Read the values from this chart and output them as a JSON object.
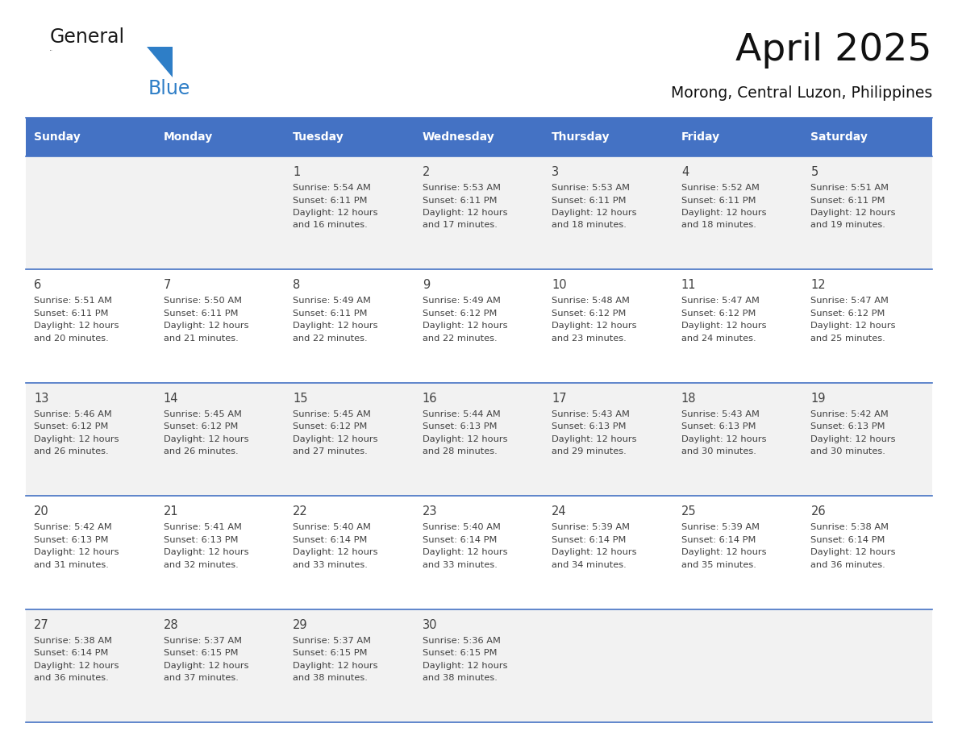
{
  "title": "April 2025",
  "subtitle": "Morong, Central Luzon, Philippines",
  "header_bg": "#4472C4",
  "header_text_color": "#FFFFFF",
  "day_names": [
    "Sunday",
    "Monday",
    "Tuesday",
    "Wednesday",
    "Thursday",
    "Friday",
    "Saturday"
  ],
  "row_bg_odd": "#F2F2F2",
  "row_bg_even": "#FFFFFF",
  "grid_line_color": "#4472C4",
  "text_color": "#404040",
  "days": [
    {
      "day": 1,
      "col": 2,
      "row": 0,
      "sunrise": "5:54 AM",
      "sunset": "6:11 PM",
      "daylight_mins": "16"
    },
    {
      "day": 2,
      "col": 3,
      "row": 0,
      "sunrise": "5:53 AM",
      "sunset": "6:11 PM",
      "daylight_mins": "17"
    },
    {
      "day": 3,
      "col": 4,
      "row": 0,
      "sunrise": "5:53 AM",
      "sunset": "6:11 PM",
      "daylight_mins": "18"
    },
    {
      "day": 4,
      "col": 5,
      "row": 0,
      "sunrise": "5:52 AM",
      "sunset": "6:11 PM",
      "daylight_mins": "18"
    },
    {
      "day": 5,
      "col": 6,
      "row": 0,
      "sunrise": "5:51 AM",
      "sunset": "6:11 PM",
      "daylight_mins": "19"
    },
    {
      "day": 6,
      "col": 0,
      "row": 1,
      "sunrise": "5:51 AM",
      "sunset": "6:11 PM",
      "daylight_mins": "20"
    },
    {
      "day": 7,
      "col": 1,
      "row": 1,
      "sunrise": "5:50 AM",
      "sunset": "6:11 PM",
      "daylight_mins": "21"
    },
    {
      "day": 8,
      "col": 2,
      "row": 1,
      "sunrise": "5:49 AM",
      "sunset": "6:11 PM",
      "daylight_mins": "22"
    },
    {
      "day": 9,
      "col": 3,
      "row": 1,
      "sunrise": "5:49 AM",
      "sunset": "6:12 PM",
      "daylight_mins": "22"
    },
    {
      "day": 10,
      "col": 4,
      "row": 1,
      "sunrise": "5:48 AM",
      "sunset": "6:12 PM",
      "daylight_mins": "23"
    },
    {
      "day": 11,
      "col": 5,
      "row": 1,
      "sunrise": "5:47 AM",
      "sunset": "6:12 PM",
      "daylight_mins": "24"
    },
    {
      "day": 12,
      "col": 6,
      "row": 1,
      "sunrise": "5:47 AM",
      "sunset": "6:12 PM",
      "daylight_mins": "25"
    },
    {
      "day": 13,
      "col": 0,
      "row": 2,
      "sunrise": "5:46 AM",
      "sunset": "6:12 PM",
      "daylight_mins": "26"
    },
    {
      "day": 14,
      "col": 1,
      "row": 2,
      "sunrise": "5:45 AM",
      "sunset": "6:12 PM",
      "daylight_mins": "26"
    },
    {
      "day": 15,
      "col": 2,
      "row": 2,
      "sunrise": "5:45 AM",
      "sunset": "6:12 PM",
      "daylight_mins": "27"
    },
    {
      "day": 16,
      "col": 3,
      "row": 2,
      "sunrise": "5:44 AM",
      "sunset": "6:13 PM",
      "daylight_mins": "28"
    },
    {
      "day": 17,
      "col": 4,
      "row": 2,
      "sunrise": "5:43 AM",
      "sunset": "6:13 PM",
      "daylight_mins": "29"
    },
    {
      "day": 18,
      "col": 5,
      "row": 2,
      "sunrise": "5:43 AM",
      "sunset": "6:13 PM",
      "daylight_mins": "30"
    },
    {
      "day": 19,
      "col": 6,
      "row": 2,
      "sunrise": "5:42 AM",
      "sunset": "6:13 PM",
      "daylight_mins": "30"
    },
    {
      "day": 20,
      "col": 0,
      "row": 3,
      "sunrise": "5:42 AM",
      "sunset": "6:13 PM",
      "daylight_mins": "31"
    },
    {
      "day": 21,
      "col": 1,
      "row": 3,
      "sunrise": "5:41 AM",
      "sunset": "6:13 PM",
      "daylight_mins": "32"
    },
    {
      "day": 22,
      "col": 2,
      "row": 3,
      "sunrise": "5:40 AM",
      "sunset": "6:14 PM",
      "daylight_mins": "33"
    },
    {
      "day": 23,
      "col": 3,
      "row": 3,
      "sunrise": "5:40 AM",
      "sunset": "6:14 PM",
      "daylight_mins": "33"
    },
    {
      "day": 24,
      "col": 4,
      "row": 3,
      "sunrise": "5:39 AM",
      "sunset": "6:14 PM",
      "daylight_mins": "34"
    },
    {
      "day": 25,
      "col": 5,
      "row": 3,
      "sunrise": "5:39 AM",
      "sunset": "6:14 PM",
      "daylight_mins": "35"
    },
    {
      "day": 26,
      "col": 6,
      "row": 3,
      "sunrise": "5:38 AM",
      "sunset": "6:14 PM",
      "daylight_mins": "36"
    },
    {
      "day": 27,
      "col": 0,
      "row": 4,
      "sunrise": "5:38 AM",
      "sunset": "6:14 PM",
      "daylight_mins": "36"
    },
    {
      "day": 28,
      "col": 1,
      "row": 4,
      "sunrise": "5:37 AM",
      "sunset": "6:15 PM",
      "daylight_mins": "37"
    },
    {
      "day": 29,
      "col": 2,
      "row": 4,
      "sunrise": "5:37 AM",
      "sunset": "6:15 PM",
      "daylight_mins": "38"
    },
    {
      "day": 30,
      "col": 3,
      "row": 4,
      "sunrise": "5:36 AM",
      "sunset": "6:15 PM",
      "daylight_mins": "38"
    }
  ]
}
